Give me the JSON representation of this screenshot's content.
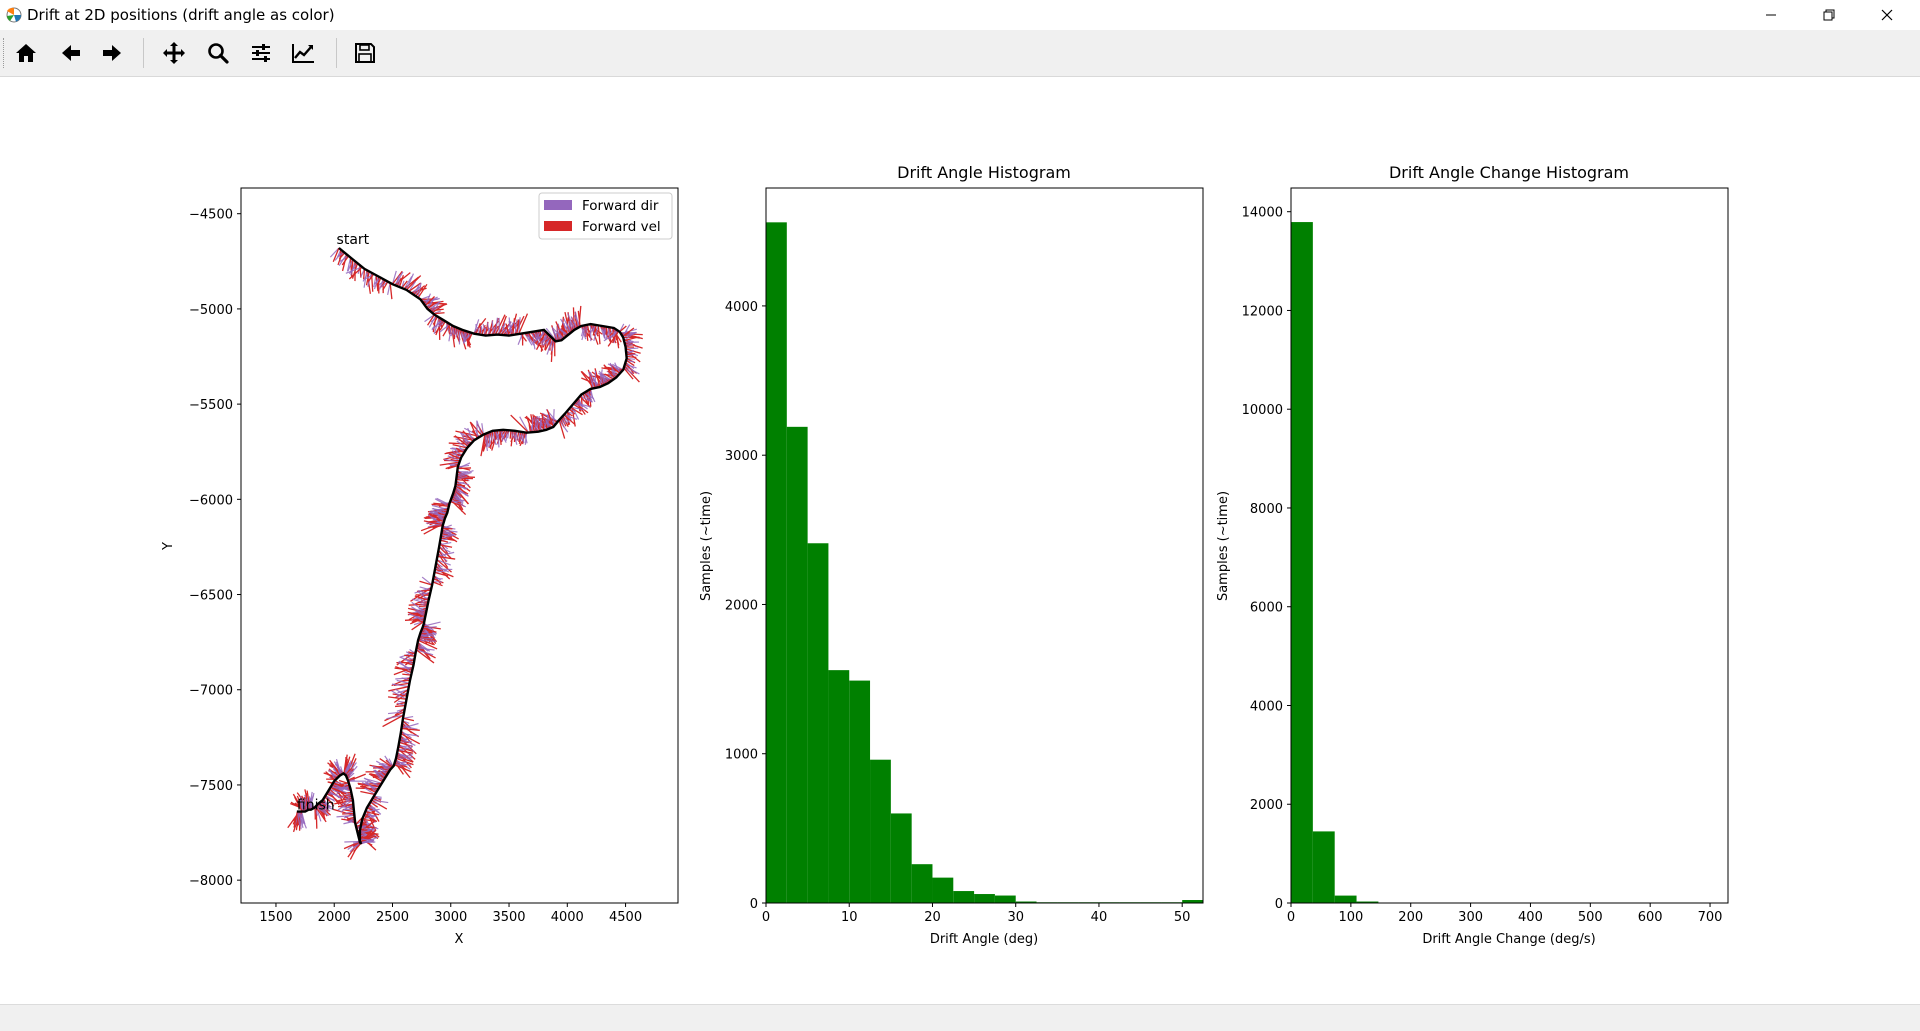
{
  "window": {
    "title": "Drift at 2D positions (drift angle as color)",
    "controls": [
      "minimize-icon",
      "restore-icon",
      "close-icon"
    ]
  },
  "toolbar": {
    "buttons": [
      {
        "name": "home",
        "icon": "home-icon"
      },
      {
        "name": "back",
        "icon": "arrow-left-icon"
      },
      {
        "name": "forward",
        "icon": "arrow-right-icon"
      },
      {
        "name": "pan",
        "icon": "move-icon"
      },
      {
        "name": "zoom",
        "icon": "zoom-icon"
      },
      {
        "name": "configure-subplots",
        "icon": "sliders-icon"
      },
      {
        "name": "edit-axis",
        "icon": "line-chart-icon"
      },
      {
        "name": "save",
        "icon": "floppy-disk-icon"
      }
    ]
  },
  "chart_data": [
    {
      "type": "line",
      "title": "",
      "xlabel": "X",
      "ylabel": "Y",
      "xlim": [
        1200,
        4950
      ],
      "ylim": [
        -8120,
        -4365
      ],
      "xticks": [
        1500,
        2000,
        2500,
        3000,
        3500,
        4000,
        4500
      ],
      "yticks": [
        -4500,
        -5000,
        -5500,
        -6000,
        -6500,
        -7000,
        -7500,
        -8000
      ],
      "grid": false,
      "legend": {
        "placement": "top-right",
        "entries": [
          {
            "label": "Forward dir",
            "color": "#9467bd"
          },
          {
            "label": "Forward vel",
            "color": "#d62728"
          }
        ]
      },
      "annotations": [
        {
          "text": "start",
          "x": 2020,
          "y": -4660
        },
        {
          "text": "finish",
          "x": 1680,
          "y": -7630
        }
      ],
      "series": [
        {
          "color": "#000000",
          "x": [
            2040,
            2140,
            2260,
            2380,
            2500,
            2620,
            2740,
            2800,
            2860,
            2940,
            3020,
            3100,
            3200,
            3300,
            3400,
            3500,
            3600,
            3700,
            3800,
            3850,
            3900,
            3950,
            4000,
            4060,
            4120,
            4200,
            4300,
            4400,
            4450,
            4480,
            4500,
            4510,
            4480,
            4420,
            4350,
            4280,
            4200,
            4120,
            4050,
            3980,
            3920,
            3880,
            3820,
            3750,
            3650,
            3550,
            3450,
            3360,
            3280,
            3200,
            3140,
            3090,
            3060,
            3050,
            3040,
            3020,
            2990,
            2970,
            2950,
            2940,
            2930,
            2920,
            2900,
            2870,
            2840,
            2810,
            2790,
            2780,
            2770,
            2760,
            2740,
            2720,
            2700,
            2680,
            2650,
            2620,
            2590,
            2570,
            2550,
            2530,
            2510,
            2480,
            2450,
            2400,
            2340,
            2280,
            2240,
            2220,
            2220,
            2230,
            2220,
            2200,
            2180,
            2170,
            2160,
            2140,
            2120,
            2100,
            2080,
            2050,
            2000,
            1950,
            1900,
            1860,
            1830,
            1800,
            1780,
            1750,
            1720,
            1700,
            1680
          ],
          "y": [
            -4680,
            -4730,
            -4790,
            -4830,
            -4870,
            -4900,
            -4950,
            -5000,
            -5030,
            -5060,
            -5090,
            -5110,
            -5130,
            -5140,
            -5135,
            -5140,
            -5130,
            -5120,
            -5110,
            -5140,
            -5170,
            -5165,
            -5140,
            -5110,
            -5090,
            -5080,
            -5090,
            -5100,
            -5120,
            -5150,
            -5200,
            -5260,
            -5320,
            -5360,
            -5390,
            -5410,
            -5420,
            -5450,
            -5500,
            -5550,
            -5590,
            -5620,
            -5635,
            -5645,
            -5650,
            -5640,
            -5635,
            -5640,
            -5660,
            -5690,
            -5730,
            -5780,
            -5830,
            -5880,
            -5930,
            -5970,
            -6020,
            -6070,
            -6100,
            -6120,
            -6140,
            -6180,
            -6250,
            -6350,
            -6450,
            -6530,
            -6590,
            -6620,
            -6650,
            -6670,
            -6700,
            -6740,
            -6800,
            -6870,
            -6950,
            -7050,
            -7150,
            -7230,
            -7300,
            -7360,
            -7400,
            -7420,
            -7450,
            -7500,
            -7560,
            -7620,
            -7680,
            -7740,
            -7790,
            -7810,
            -7800,
            -7750,
            -7700,
            -7640,
            -7580,
            -7520,
            -7480,
            -7450,
            -7440,
            -7450,
            -7480,
            -7530,
            -7580,
            -7600,
            -7620,
            -7630,
            -7630,
            -7640,
            -7640,
            -7640,
            -7640
          ]
        }
      ]
    },
    {
      "type": "bar",
      "title": "Drift Angle Histogram",
      "xlabel": "Drift Angle (deg)",
      "ylabel": "Samples (~time)",
      "xlim": [
        0,
        52.5
      ],
      "ylim": [
        0,
        4790
      ],
      "xticks": [
        0,
        10,
        20,
        30,
        40,
        50
      ],
      "yticks": [
        0,
        1000,
        2000,
        3000,
        4000
      ],
      "bin_width": 2.5,
      "bin_starts": [
        0,
        2.5,
        5,
        7.5,
        10,
        12.5,
        15,
        17.5,
        20,
        22.5,
        25,
        27.5,
        30,
        32.5,
        35,
        37.5,
        40,
        42.5,
        45,
        47.5,
        50
      ],
      "values": [
        4560,
        3190,
        2410,
        1560,
        1490,
        960,
        600,
        260,
        170,
        80,
        60,
        50,
        10,
        5,
        5,
        5,
        5,
        5,
        5,
        5,
        20
      ],
      "color": "#008000"
    },
    {
      "type": "bar",
      "title": "Drift Angle Change Histogram",
      "xlabel": "Drift Angle Change (deg/s)",
      "ylabel": "Samples (~time)",
      "xlim": [
        0,
        730
      ],
      "ylim": [
        0,
        14480
      ],
      "xticks": [
        0,
        100,
        200,
        300,
        400,
        500,
        600,
        700
      ],
      "yticks": [
        0,
        2000,
        4000,
        6000,
        8000,
        10000,
        12000,
        14000
      ],
      "bin_width": 36.5,
      "bin_starts": [
        0,
        36.5,
        73,
        109.5,
        146,
        182.5
      ],
      "values": [
        13790,
        1450,
        150,
        30,
        10,
        5
      ],
      "color": "#008000"
    }
  ]
}
